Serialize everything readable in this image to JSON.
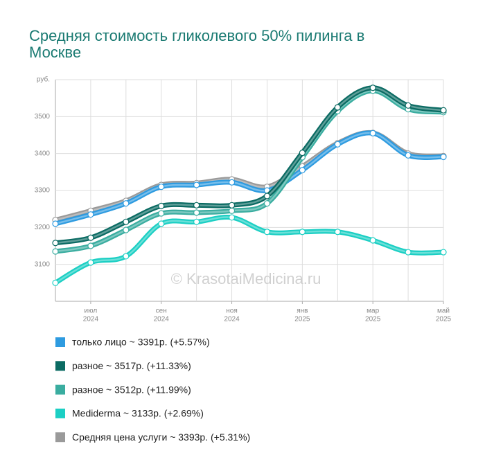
{
  "chart_data": {
    "type": "line",
    "title": "Средняя стоимость гликолевого 50% пилинга в Москве",
    "watermark": "© KrasotaiMedicina.ru",
    "categories": [
      null,
      [
        "июл",
        "2024"
      ],
      null,
      [
        "сен",
        "2024"
      ],
      null,
      [
        "ноя",
        "2024"
      ],
      null,
      [
        "янв",
        "2025"
      ],
      null,
      [
        "мар",
        "2025"
      ],
      null,
      [
        "май",
        "2025"
      ]
    ],
    "ylim": [
      3000,
      3600
    ],
    "yticks": [
      3100,
      3200,
      3300,
      3400,
      3500,
      {
        "value": 3600,
        "label": "руб."
      }
    ],
    "grid": true,
    "series": [
      {
        "name": "только лицо ~ 3391р. (+5.57%)",
        "color": "#2e9be0",
        "values": [
          3210,
          3235,
          3265,
          3310,
          3315,
          3322,
          3300,
          3355,
          3425,
          3455,
          3395,
          3391
        ]
      },
      {
        "name": "разное ~ 3517р. (+11.33%)",
        "color": "#0b6b63",
        "values": [
          3158,
          3172,
          3215,
          3258,
          3260,
          3260,
          3285,
          3402,
          3525,
          3578,
          3530,
          3517
        ]
      },
      {
        "name": "разное ~ 3512р. (+11.99%)",
        "color": "#3aada0",
        "values": [
          3135,
          3150,
          3193,
          3238,
          3240,
          3245,
          3265,
          3390,
          3515,
          3570,
          3520,
          3512
        ]
      },
      {
        "name": "Mediderma ~ 3133р. (+2.69%)",
        "color": "#1ccfc4",
        "values": [
          3050,
          3105,
          3122,
          3210,
          3215,
          3227,
          3188,
          3188,
          3188,
          3165,
          3133,
          3133
        ]
      },
      {
        "name": "Средняя цена услуги ~ 3393р. (+5.31%)",
        "color": "#9a9a9a",
        "values": [
          3220,
          3245,
          3272,
          3315,
          3320,
          3330,
          3310,
          3365,
          3428,
          3456,
          3400,
          3393
        ]
      }
    ]
  }
}
